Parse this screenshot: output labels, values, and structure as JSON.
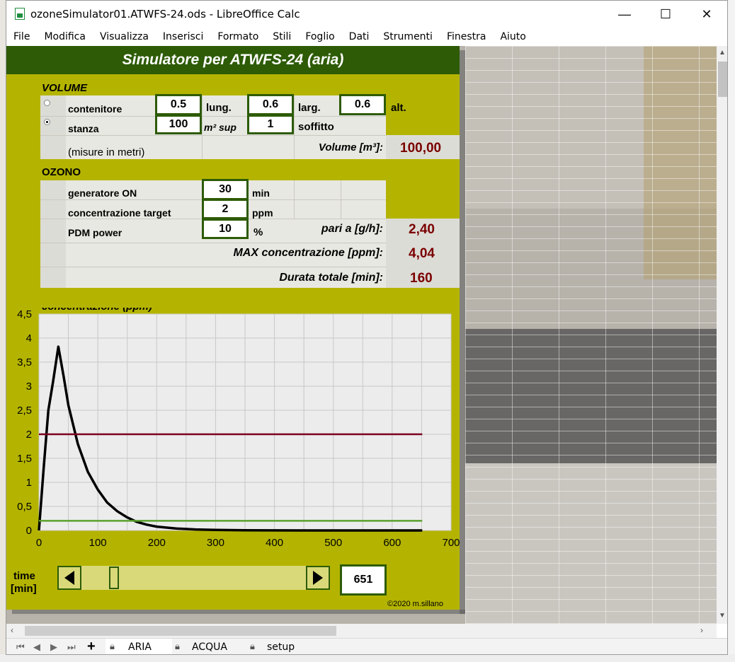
{
  "window": {
    "title": "ozoneSimulator01.ATWFS-24.ods - LibreOffice Calc",
    "minimize": "—",
    "maximize": "☐",
    "close": "✕"
  },
  "menu": [
    "File",
    "Modifica",
    "Visualizza",
    "Inserisci",
    "Formato",
    "Stili",
    "Foglio",
    "Dati",
    "Strumenti",
    "Finestra",
    "Aiuto"
  ],
  "panel": {
    "title": "Simulatore per ATWFS-24 (aria)",
    "volume": {
      "section": "VOLUME",
      "contenitore_label": "contenitore",
      "stanza_label": "stanza",
      "selected": "stanza",
      "lung_value": "0.5",
      "lung_label": "lung.",
      "larg_value": "0.6",
      "larg_label": "larg.",
      "alt_value": "0.6",
      "alt_label": "alt.",
      "m2_value": "100",
      "m2_label": "m² sup",
      "soffitto_value": "1",
      "soffitto_label": "soffitto",
      "note": "(misure in metri)",
      "volume_label": "Volume [m³]:",
      "volume_value": "100,00"
    },
    "ozono": {
      "section": "OZONO",
      "generatore_label": "generatore ON",
      "generatore_value": "30",
      "generatore_unit": "min",
      "target_label": "concentrazione target",
      "target_value": "2",
      "target_unit": "ppm",
      "pdm_label": "PDM power",
      "pdm_value": "10",
      "pdm_unit": "%",
      "pari_label": "pari a [g/h]:",
      "pari_value": "2,40",
      "max_label": "MAX concentrazione [ppm]:",
      "max_value": "4,04",
      "durata_label": "Durata totale [min]:",
      "durata_value": "160"
    },
    "time": {
      "label_line1": "time",
      "label_line2": "[min]",
      "value": "651",
      "slider_fraction": 0.13
    },
    "copyright": "©2020 m.sillano"
  },
  "chart_data": {
    "type": "line",
    "title": "concentrazione (ppm)",
    "xlim": [
      0,
      700
    ],
    "ylim": [
      0,
      4.5
    ],
    "x_ticks": [
      0,
      100,
      200,
      300,
      400,
      500,
      600,
      700
    ],
    "y_ticks": [
      0,
      0.5,
      1,
      1.5,
      2,
      2.5,
      3,
      3.5,
      4,
      4.5
    ],
    "x_tick_labels": [
      "0",
      "100",
      "200",
      "300",
      "400",
      "500",
      "600",
      "700"
    ],
    "y_tick_labels": [
      "0",
      "0,5",
      "1",
      "1,5",
      "2",
      "2,5",
      "3",
      "3,5",
      "4",
      "4,5"
    ],
    "grid": true,
    "series": [
      {
        "color": "#000000",
        "x": [
          0,
          8,
          16,
          24,
          33,
          42,
          50,
          66,
          83,
          100,
          116,
          133,
          150,
          166,
          183,
          200,
          233,
          266,
          300,
          350,
          400,
          450,
          500,
          550,
          600,
          651
        ],
        "y": [
          0,
          1.3,
          2.5,
          3.1,
          3.82,
          3.2,
          2.6,
          1.8,
          1.22,
          0.85,
          0.58,
          0.4,
          0.27,
          0.18,
          0.12,
          0.08,
          0.04,
          0.02,
          0.01,
          0.003,
          0.001,
          0,
          0,
          0,
          0,
          0
        ]
      },
      {
        "color": "#7a0020",
        "x": [
          0,
          651
        ],
        "y": [
          2,
          2
        ]
      },
      {
        "color": "#5aa02c",
        "x": [
          0,
          651
        ],
        "y": [
          0.2,
          0.2
        ]
      }
    ]
  },
  "tabs": [
    "ARIA",
    "ACQUA",
    "setup"
  ],
  "add_tab": "+"
}
